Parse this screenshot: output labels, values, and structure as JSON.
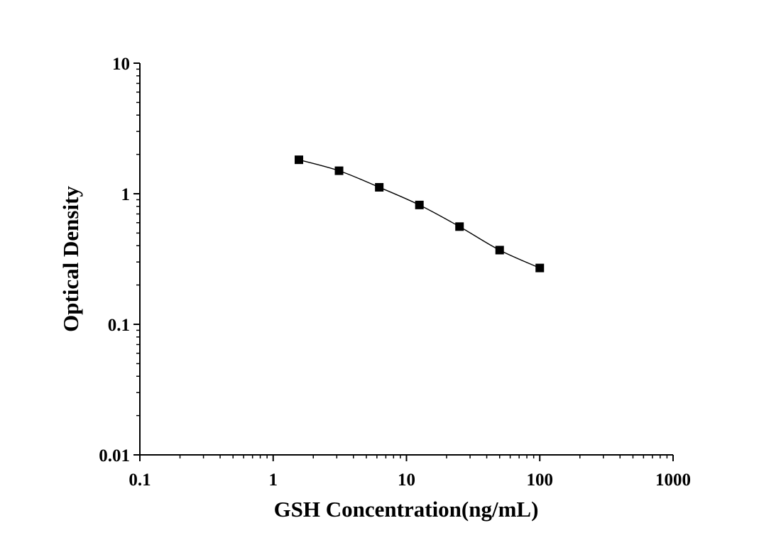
{
  "chart_data": {
    "type": "scatter",
    "title": "",
    "xlabel": "GSH Concentration(ng/mL)",
    "ylabel": "Optical Density",
    "xscale": "log",
    "yscale": "log",
    "xlim": [
      0.1,
      1000
    ],
    "ylim": [
      0.01,
      10
    ],
    "x_ticks": [
      "0.1",
      "1",
      "10",
      "100",
      "1000"
    ],
    "y_ticks": [
      "0.01",
      "0.1",
      "1",
      "10"
    ],
    "grid": false,
    "legend": "none",
    "series": [
      {
        "marker": "square",
        "color": "#000000",
        "fit_line": true,
        "points": [
          {
            "x": 1.56,
            "y": 1.82
          },
          {
            "x": 3.12,
            "y": 1.5
          },
          {
            "x": 6.25,
            "y": 1.12
          },
          {
            "x": 12.5,
            "y": 0.82
          },
          {
            "x": 25,
            "y": 0.56
          },
          {
            "x": 50,
            "y": 0.37
          },
          {
            "x": 100,
            "y": 0.27
          }
        ]
      }
    ]
  }
}
